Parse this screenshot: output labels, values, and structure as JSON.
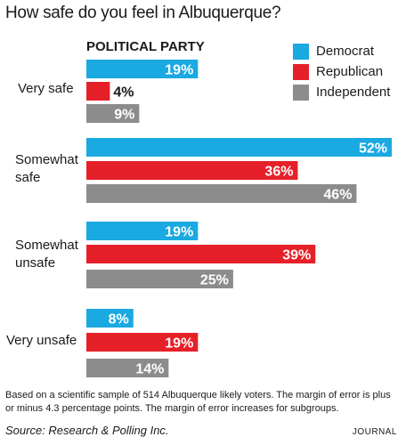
{
  "title": "How safe do you feel in Albuquerque?",
  "colors": {
    "Democrat": "#1aa9e1",
    "Republican": "#e62028",
    "Independent": "#8c8c8c"
  },
  "chart_data": {
    "type": "bar",
    "orientation": "horizontal",
    "title": "How safe do you feel in Albuquerque?",
    "subtitle": "POLITICAL PARTY",
    "categories": [
      "Very safe",
      "Somewhat\nsafe",
      "Somewhat\nunsafe",
      "Very unsafe"
    ],
    "series": [
      {
        "name": "Democrat",
        "values": [
          19,
          52,
          19,
          8
        ]
      },
      {
        "name": "Republican",
        "values": [
          4,
          36,
          39,
          19
        ]
      },
      {
        "name": "Independent",
        "values": [
          9,
          46,
          25,
          14
        ]
      }
    ],
    "value_labels": [
      [
        "19%",
        "4%",
        "9%"
      ],
      [
        "52%",
        "36%",
        "46%"
      ],
      [
        "19%",
        "39%",
        "25%"
      ],
      [
        "8%",
        "19%",
        "14%"
      ]
    ],
    "xlim": [
      0,
      52
    ],
    "grid": false,
    "legend_position": "top-right"
  },
  "footnote": "Based on a scientific sample of 514  Albuquerque likely voters. The margin of error is plus or minus 4.3 percentage points. The margin of error increases for subgroups.",
  "source": "Source: Research & Polling Inc.",
  "credit": "JOURNAL"
}
